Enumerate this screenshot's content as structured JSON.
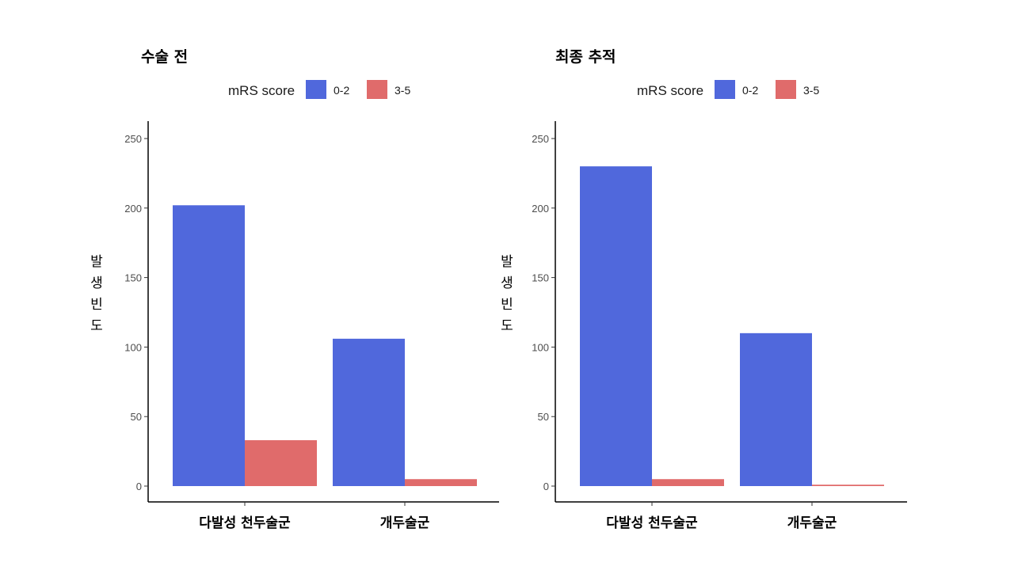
{
  "legend": {
    "title": "mRS score"
  },
  "colors": {
    "0-2": "#5068DC",
    "3-5": "#E06B6B"
  },
  "chart_data": [
    {
      "type": "bar",
      "title": "수술 전",
      "ylabel": "발생빈도",
      "xlabel": "",
      "categories": [
        "다발성 천두술군",
        "개두술군"
      ],
      "series": [
        {
          "name": "0-2",
          "values": [
            202,
            106
          ]
        },
        {
          "name": "3-5",
          "values": [
            33,
            5
          ]
        }
      ],
      "yticks": [
        0,
        50,
        100,
        150,
        200,
        250
      ],
      "ylim": [
        -12,
        262
      ],
      "legend_position": "top",
      "grid": false
    },
    {
      "type": "bar",
      "title": "최종 추적",
      "ylabel": "발생빈도",
      "xlabel": "",
      "categories": [
        "다발성 천두술군",
        "개두술군"
      ],
      "series": [
        {
          "name": "0-2",
          "values": [
            230,
            110
          ]
        },
        {
          "name": "3-5",
          "values": [
            5,
            1
          ]
        }
      ],
      "yticks": [
        0,
        50,
        100,
        150,
        200,
        250
      ],
      "ylim": [
        -12,
        262
      ],
      "legend_position": "top",
      "grid": false
    }
  ]
}
